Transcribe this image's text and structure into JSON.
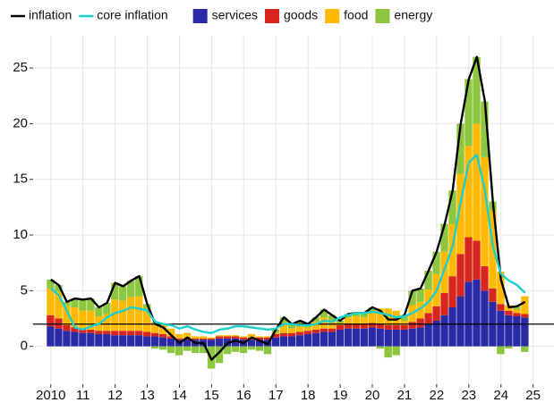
{
  "chart_data": {
    "type": "bar",
    "stacked": true,
    "x": [
      2010,
      2010.25,
      2010.5,
      2010.75,
      2011,
      2011.25,
      2011.5,
      2011.75,
      2012,
      2012.25,
      2012.5,
      2012.75,
      2013,
      2013.25,
      2013.5,
      2013.75,
      2014,
      2014.25,
      2014.5,
      2014.75,
      2015,
      2015.25,
      2015.5,
      2015.75,
      2016,
      2016.25,
      2016.5,
      2016.75,
      2017,
      2017.25,
      2017.5,
      2017.75,
      2018,
      2018.25,
      2018.5,
      2018.75,
      2019,
      2019.25,
      2019.5,
      2019.75,
      2020,
      2020.25,
      2020.5,
      2020.75,
      2021,
      2021.25,
      2021.5,
      2021.75,
      2022,
      2022.25,
      2022.5,
      2022.75,
      2023,
      2023.25,
      2023.5,
      2023.75,
      2024,
      2024.25,
      2024.5,
      2024.75
    ],
    "series": [
      {
        "name": "services",
        "color": "#2a2aa6",
        "values": [
          1.8,
          1.6,
          1.4,
          1.3,
          1.2,
          1.2,
          1.1,
          1.1,
          1.0,
          1.0,
          1.0,
          1.0,
          0.9,
          0.9,
          0.8,
          0.7,
          0.6,
          0.6,
          0.6,
          0.6,
          0.6,
          0.7,
          0.7,
          0.7,
          0.6,
          0.6,
          0.6,
          0.6,
          0.8,
          0.9,
          0.9,
          1.0,
          1.1,
          1.2,
          1.3,
          1.3,
          1.5,
          1.6,
          1.6,
          1.6,
          1.7,
          1.6,
          1.5,
          1.5,
          1.5,
          1.6,
          1.7,
          2.0,
          2.3,
          2.8,
          3.5,
          4.5,
          5.8,
          6.0,
          5.0,
          4.0,
          3.2,
          2.8,
          2.7,
          2.6
        ]
      },
      {
        "name": "goods",
        "color": "#d7261e",
        "values": [
          1.0,
          0.9,
          0.5,
          0.4,
          0.3,
          0.3,
          0.3,
          0.3,
          0.4,
          0.4,
          0.4,
          0.4,
          0.4,
          0.3,
          0.3,
          0.2,
          0.1,
          0.1,
          0.1,
          0.1,
          0.1,
          0.2,
          0.2,
          0.2,
          0.2,
          0.2,
          0.2,
          0.2,
          0.3,
          0.3,
          0.3,
          0.3,
          0.3,
          0.3,
          0.3,
          0.3,
          0.4,
          0.4,
          0.4,
          0.4,
          0.4,
          0.4,
          0.4,
          0.4,
          0.4,
          0.6,
          0.8,
          1.0,
          1.3,
          2.0,
          2.8,
          3.8,
          4.0,
          3.5,
          2.2,
          1.2,
          0.6,
          0.4,
          0.3,
          0.3
        ]
      },
      {
        "name": "food",
        "color": "#ffb900",
        "values": [
          2.4,
          2.4,
          1.7,
          1.8,
          1.7,
          1.7,
          1.3,
          1.5,
          2.8,
          2.7,
          3.0,
          3.1,
          2.0,
          1.0,
          0.9,
          0.7,
          0.4,
          0.5,
          0.2,
          0.2,
          0.1,
          0.1,
          0.1,
          0.1,
          0.1,
          0.3,
          0.1,
          0.1,
          0.1,
          0.9,
          0.4,
          0.6,
          0.3,
          0.7,
          1.0,
          0.7,
          0.2,
          0.6,
          0.7,
          0.6,
          1.0,
          1.4,
          1.5,
          1.3,
          0.4,
          1.5,
          1.5,
          2.1,
          2.9,
          3.7,
          4.7,
          7.2,
          8.2,
          10.5,
          9.8,
          7.0,
          2.9,
          0.5,
          0.3,
          1.6
        ]
      },
      {
        "name": "energy",
        "color": "#8dc63f",
        "values": [
          0.8,
          0.6,
          0.4,
          0.8,
          1.0,
          1.1,
          0.8,
          1.0,
          1.5,
          1.3,
          1.5,
          1.8,
          0.5,
          -0.2,
          -0.3,
          -0.6,
          -0.8,
          -0.4,
          -0.6,
          -0.6,
          -2.0,
          -1.5,
          -0.7,
          -0.5,
          -0.6,
          -0.3,
          -0.4,
          -0.7,
          0.3,
          0.5,
          0.4,
          0.4,
          0.3,
          0.4,
          0.7,
          0.5,
          0.2,
          0.3,
          0.3,
          0.4,
          0.4,
          -0.2,
          -1.0,
          -0.8,
          0.5,
          1.3,
          1.2,
          1.7,
          2.0,
          2.5,
          3.0,
          4.5,
          6.0,
          6.0,
          5.0,
          0.8,
          -0.7,
          -0.2,
          0.3,
          -0.5
        ]
      }
    ],
    "lines": [
      {
        "name": "inflation",
        "color": "#000000",
        "values": [
          6.0,
          5.5,
          4.0,
          4.3,
          4.2,
          4.3,
          3.5,
          3.9,
          5.7,
          5.4,
          5.9,
          6.3,
          3.8,
          2.0,
          1.7,
          1.0,
          0.3,
          0.8,
          0.3,
          0.3,
          -1.2,
          -0.5,
          0.3,
          0.5,
          0.3,
          0.8,
          0.5,
          0.2,
          1.5,
          2.6,
          2.0,
          2.3,
          2.0,
          2.6,
          3.3,
          2.8,
          2.3,
          2.9,
          3.0,
          3.0,
          3.5,
          3.2,
          2.4,
          2.4,
          2.8,
          5.0,
          5.2,
          6.8,
          8.5,
          11.0,
          14.0,
          20.0,
          24.0,
          26.0,
          22.0,
          13.0,
          6.0,
          3.5,
          3.6,
          4.0
        ]
      },
      {
        "name": "core inflation",
        "color": "#1ccfcf",
        "values": [
          5.2,
          4.6,
          3.2,
          1.7,
          1.5,
          1.8,
          2.0,
          2.6,
          3.0,
          3.2,
          3.5,
          3.4,
          3.2,
          2.2,
          2.0,
          1.9,
          1.6,
          1.8,
          1.5,
          1.3,
          1.2,
          1.5,
          1.6,
          1.8,
          1.8,
          1.7,
          1.6,
          1.5,
          1.6,
          2.0,
          2.0,
          1.9,
          1.9,
          2.0,
          2.3,
          2.2,
          2.6,
          2.8,
          3.0,
          3.0,
          3.1,
          3.0,
          2.8,
          2.6,
          2.7,
          3.0,
          3.4,
          4.0,
          5.0,
          7.0,
          9.0,
          13.0,
          16.5,
          17.2,
          14.0,
          9.0,
          6.5,
          5.9,
          5.5,
          4.8
        ]
      }
    ],
    "hline": 2,
    "xlim": [
      2009.45,
      2025.65
    ],
    "xticks": [
      2010,
      {
        "value": 2011,
        "label": "11"
      },
      {
        "value": 2012,
        "label": "12"
      },
      {
        "value": 2013,
        "label": "13"
      },
      {
        "value": 2014,
        "label": "14"
      },
      {
        "value": 2015,
        "label": "15"
      },
      {
        "value": 2016,
        "label": "16"
      },
      {
        "value": 2017,
        "label": "17"
      },
      {
        "value": 2018,
        "label": "18"
      },
      {
        "value": 2019,
        "label": "19"
      },
      {
        "value": 2020,
        "label": "20"
      },
      {
        "value": 2021,
        "label": "21"
      },
      {
        "value": 2022,
        "label": "22"
      },
      {
        "value": 2023,
        "label": "23"
      },
      {
        "value": 2024,
        "label": "24"
      },
      {
        "value": 2025,
        "label": "25"
      }
    ],
    "ylim": [
      -3.4,
      27.9
    ],
    "yticks": [
      0,
      5,
      10,
      15,
      20,
      25
    ],
    "grid": true,
    "legend": "top"
  }
}
